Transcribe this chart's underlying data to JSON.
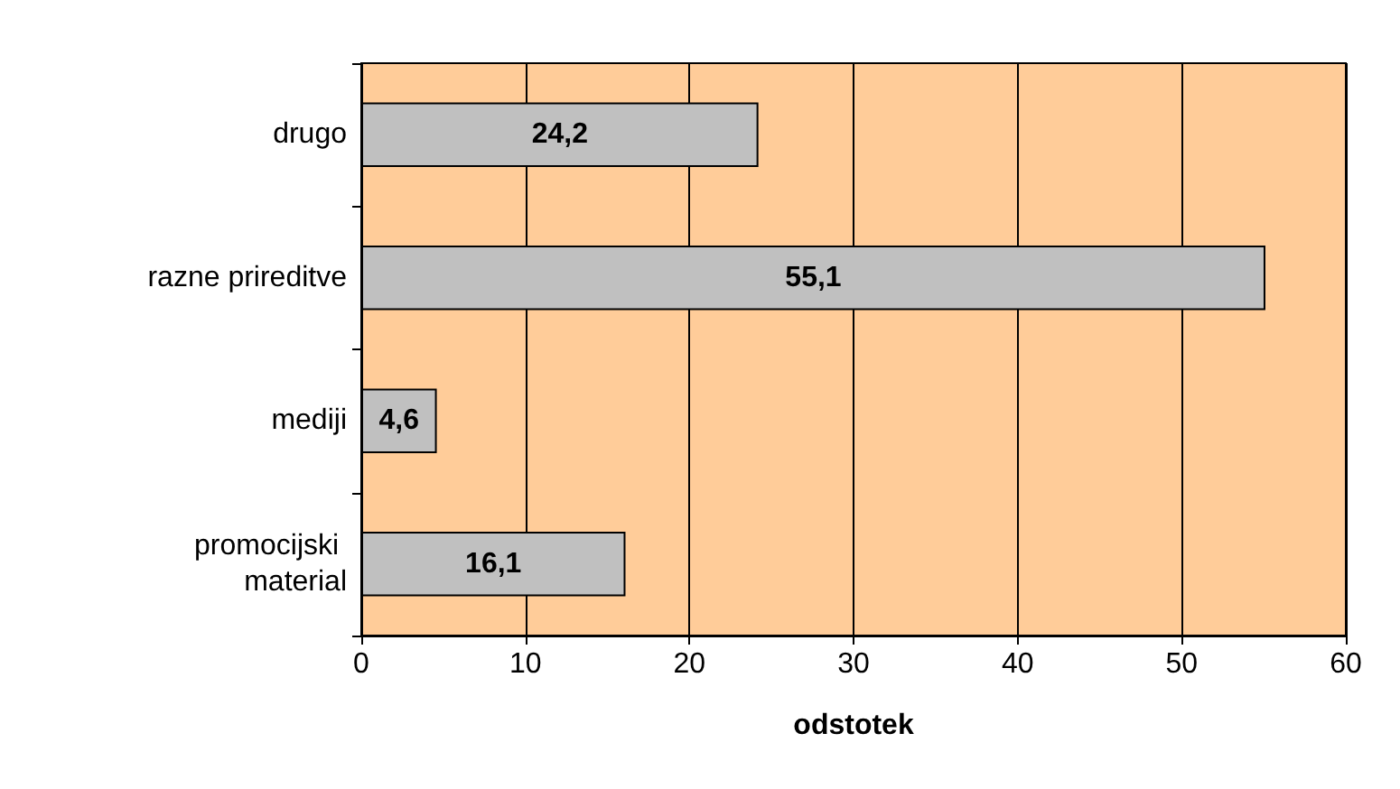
{
  "chart_data": {
    "type": "bar",
    "orientation": "horizontal",
    "xlabel": "odstotek",
    "categories": [
      "drugo",
      "razne prireditve",
      "mediji",
      "promocijski material"
    ],
    "values": [
      24.2,
      55.1,
      4.6,
      16.1
    ],
    "value_labels": [
      "24,2",
      "55,1",
      "4,6",
      "16,1"
    ],
    "color": "#c0c0c0",
    "xlim": [
      0,
      60
    ],
    "xticks": [
      0,
      10,
      20,
      30,
      40,
      50,
      60
    ],
    "grid": "x"
  }
}
